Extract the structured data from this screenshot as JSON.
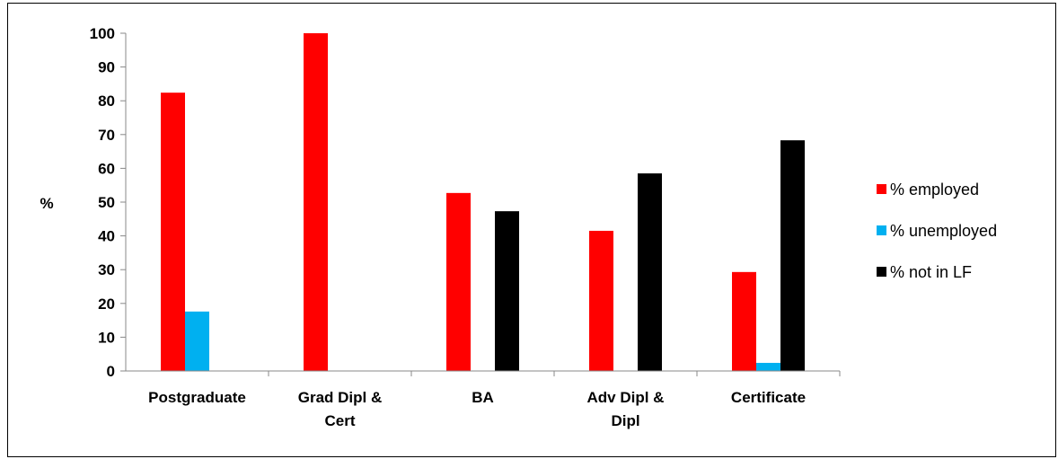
{
  "chart_data": {
    "type": "bar",
    "title": "",
    "xlabel": "",
    "ylabel": "%",
    "ylim": [
      0,
      100
    ],
    "yticks": [
      0,
      10,
      20,
      30,
      40,
      50,
      60,
      70,
      80,
      90,
      100
    ],
    "grid": false,
    "legend_position": "right",
    "categories": [
      [
        "Postgraduate"
      ],
      [
        "Grad Dipl &",
        "Cert"
      ],
      [
        "BA"
      ],
      [
        "Adv Dipl &",
        "Dipl"
      ],
      [
        "Certificate"
      ]
    ],
    "series": [
      {
        "name": "% employed",
        "color": "#ff0000",
        "values": [
          82.4,
          100,
          52.7,
          41.5,
          29.3
        ]
      },
      {
        "name": "% unemployed",
        "color": "#00b0f0",
        "values": [
          17.6,
          0,
          0,
          0,
          2.4
        ]
      },
      {
        "name": "% not in LF",
        "color": "#000000",
        "values": [
          0,
          0,
          47.3,
          58.5,
          68.3
        ]
      }
    ]
  }
}
